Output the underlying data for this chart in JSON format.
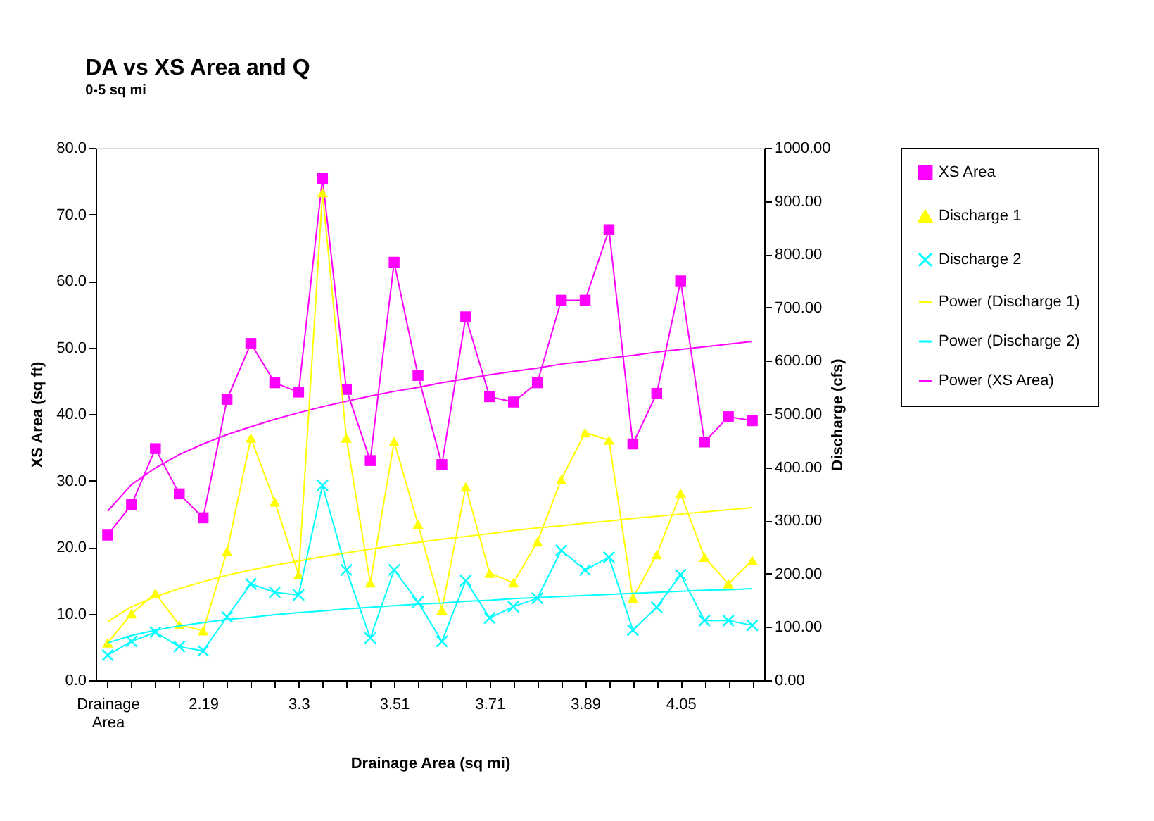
{
  "chart_data": {
    "type": "line",
    "title": "DA vs XS Area and Q",
    "subtitle": "0-5 sq mi",
    "xlabel": "Drainage Area (sq mi)",
    "ylabel": "XS Area (sq ft)",
    "y2label": "Discharge (cfs)",
    "categories": [
      "Drainage Area",
      null,
      null,
      null,
      "2.19",
      null,
      null,
      null,
      "3.3",
      null,
      null,
      null,
      "3.51",
      null,
      null,
      null,
      "3.71",
      null,
      null,
      null,
      "3.89",
      null,
      null,
      null,
      "4.05",
      null,
      null,
      null
    ],
    "ylim": [
      0,
      80
    ],
    "yticks": [
      {
        "value": 0,
        "label": "0.0"
      },
      {
        "value": 10,
        "label": "10.0"
      },
      {
        "value": 20,
        "label": "20.0"
      },
      {
        "value": 30,
        "label": "30.0"
      },
      {
        "value": 40,
        "label": "40.0"
      },
      {
        "value": 50,
        "label": "50.0"
      },
      {
        "value": 60,
        "label": "60.0"
      },
      {
        "value": 70,
        "label": "70.0"
      },
      {
        "value": 80,
        "label": "80.0"
      }
    ],
    "y2lim": [
      0,
      1000
    ],
    "y2ticks": [
      {
        "value": 0,
        "label": "0.00"
      },
      {
        "value": 100,
        "label": "100.00"
      },
      {
        "value": 200,
        "label": "200.00"
      },
      {
        "value": 300,
        "label": "300.00"
      },
      {
        "value": 400,
        "label": "400.00"
      },
      {
        "value": 500,
        "label": "500.00"
      },
      {
        "value": 600,
        "label": "600.00"
      },
      {
        "value": 700,
        "label": "700.00"
      },
      {
        "value": 800,
        "label": "800.00"
      },
      {
        "value": 900,
        "label": "900.00"
      },
      {
        "value": 1000,
        "label": "1000.00"
      }
    ],
    "grid": false,
    "legend": "right",
    "series": [
      {
        "name": "XS Area",
        "color": "#ff00ff",
        "marker": "square",
        "values": [
          21.8,
          26.4,
          34.8,
          28.0,
          24.4,
          42.2,
          50.6,
          44.7,
          43.3,
          75.4,
          43.7,
          33.0,
          62.8,
          45.8,
          32.4,
          54.6,
          42.6,
          41.8,
          44.7,
          57.1,
          57.1,
          67.7,
          35.5,
          43.1,
          60.0,
          35.8,
          39.6,
          39.0
        ]
      },
      {
        "name": "Discharge 1",
        "color": "#ffff00",
        "marker": "triangle",
        "axis": "y2",
        "values": [
          70,
          125,
          163,
          104,
          93,
          242,
          455,
          335,
          198,
          916,
          455,
          183,
          448,
          293,
          132,
          363,
          201,
          183,
          260,
          377,
          465,
          451,
          154,
          236,
          351,
          231,
          181,
          225
        ]
      },
      {
        "name": "Discharge 2",
        "color": "#00ffff",
        "marker": "cross",
        "axis": "y2",
        "values": [
          47,
          73,
          90,
          63,
          55,
          119,
          181,
          165,
          160,
          366,
          207,
          79,
          207,
          147,
          73,
          187,
          117,
          138,
          154,
          244,
          207,
          231,
          94,
          137,
          198,
          112,
          112,
          103
        ]
      },
      {
        "name": "Power (Discharge 1)",
        "color": "#ffff00",
        "marker": "none",
        "axis": "y2",
        "values": [
          110,
          138,
          157,
          172,
          185,
          197,
          207,
          216,
          224,
          232,
          239,
          246,
          253,
          259,
          265,
          270,
          275,
          281,
          286,
          290,
          295,
          299,
          304,
          308,
          312,
          316,
          320,
          324
        ]
      },
      {
        "name": "Power (Discharge 2)",
        "color": "#00ffff",
        "marker": "none",
        "axis": "y2",
        "values": [
          70,
          84,
          94,
          102,
          108,
          114,
          118,
          123,
          127,
          130,
          134,
          137,
          140,
          143,
          145,
          148,
          150,
          153,
          155,
          157,
          159,
          161,
          163,
          165,
          167,
          169,
          170,
          172
        ]
      },
      {
        "name": "Power (XS Area)",
        "color": "#ff00ff",
        "marker": "none",
        "values": [
          25.4,
          29.4,
          31.9,
          33.9,
          35.5,
          36.9,
          38.1,
          39.2,
          40.2,
          41.1,
          41.9,
          42.7,
          43.4,
          44.0,
          44.7,
          45.3,
          45.9,
          46.4,
          46.9,
          47.5,
          47.9,
          48.4,
          48.8,
          49.3,
          49.7,
          50.1,
          50.5,
          50.9
        ]
      }
    ]
  }
}
